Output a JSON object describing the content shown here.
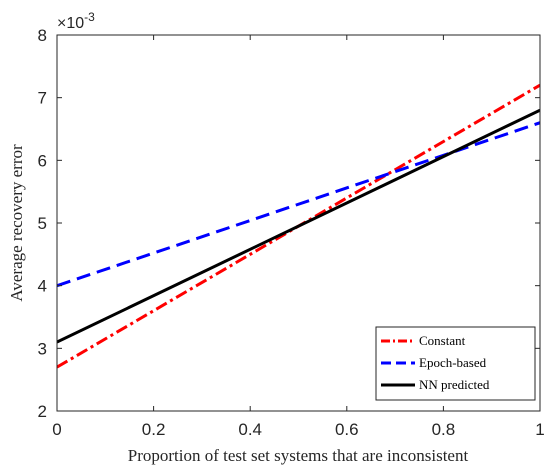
{
  "chart_data": {
    "type": "line",
    "title": "",
    "xlabel": "Proportion of test set systems that are inconsistent",
    "ylabel": "Average recovery error",
    "xlim": [
      0,
      1
    ],
    "ylim": [
      2,
      8
    ],
    "xticks": [
      0,
      0.2,
      0.4,
      0.6,
      0.8,
      1
    ],
    "xtick_labels": [
      "0",
      "0.2",
      "0.4",
      "0.6",
      "0.8",
      "1"
    ],
    "yticks": [
      2,
      3,
      4,
      5,
      6,
      7,
      8
    ],
    "ytick_labels": [
      "2",
      "3",
      "4",
      "5",
      "6",
      "7",
      "8"
    ],
    "y_scale_factor": {
      "base": "×10",
      "exponent": "-3"
    },
    "grid": false,
    "legend_position": "bottom-right",
    "series": [
      {
        "name": "Constant",
        "color": "#ff0000",
        "style": "dash-dot",
        "x": [
          0,
          1
        ],
        "y": [
          2.7,
          7.2
        ]
      },
      {
        "name": "Epoch-based",
        "color": "#0000ff",
        "style": "dashed",
        "x": [
          0,
          1
        ],
        "y": [
          4.0,
          6.6
        ]
      },
      {
        "name": "NN predicted",
        "color": "#000000",
        "style": "solid",
        "x": [
          0,
          1
        ],
        "y": [
          3.1,
          6.8
        ]
      }
    ]
  }
}
